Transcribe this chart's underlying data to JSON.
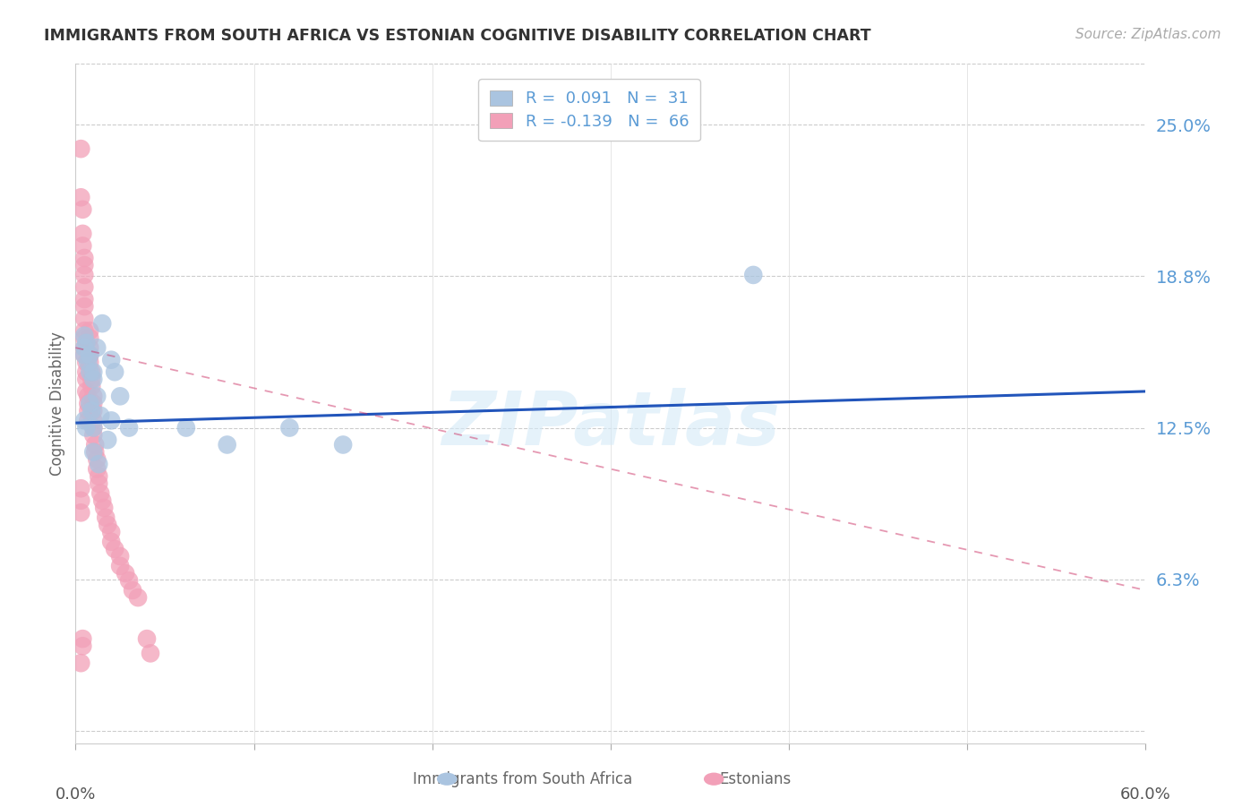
{
  "title": "IMMIGRANTS FROM SOUTH AFRICA VS ESTONIAN COGNITIVE DISABILITY CORRELATION CHART",
  "source": "Source: ZipAtlas.com",
  "ylabel": "Cognitive Disability",
  "yticks": [
    0.0,
    0.0625,
    0.125,
    0.1875,
    0.25
  ],
  "ytick_labels": [
    "",
    "6.3%",
    "12.5%",
    "18.8%",
    "25.0%"
  ],
  "xlim": [
    0.0,
    0.6
  ],
  "ylim": [
    -0.005,
    0.275
  ],
  "legend1_label": "R =  0.091   N =  31",
  "legend2_label": "R = -0.139   N =  66",
  "scatter_blue_color": "#aac4e0",
  "scatter_pink_color": "#f2a0b8",
  "trend_blue_color": "#2255bb",
  "trend_pink_color": "#cc3366",
  "watermark": "ZIPatlas",
  "blue_scatter_x": [
    0.005,
    0.007,
    0.008,
    0.005,
    0.006,
    0.005,
    0.008,
    0.009,
    0.005,
    0.006,
    0.01,
    0.012,
    0.014,
    0.01,
    0.015,
    0.012,
    0.008,
    0.01,
    0.01,
    0.013,
    0.02,
    0.022,
    0.02,
    0.018,
    0.025,
    0.03,
    0.062,
    0.085,
    0.12,
    0.15,
    0.38
  ],
  "blue_scatter_y": [
    0.155,
    0.152,
    0.148,
    0.163,
    0.16,
    0.158,
    0.135,
    0.132,
    0.128,
    0.125,
    0.145,
    0.138,
    0.13,
    0.125,
    0.168,
    0.158,
    0.155,
    0.148,
    0.115,
    0.11,
    0.153,
    0.148,
    0.128,
    0.12,
    0.138,
    0.125,
    0.125,
    0.118,
    0.125,
    0.118,
    0.188
  ],
  "pink_scatter_x": [
    0.003,
    0.003,
    0.004,
    0.004,
    0.004,
    0.005,
    0.005,
    0.005,
    0.005,
    0.005,
    0.005,
    0.005,
    0.005,
    0.005,
    0.005,
    0.005,
    0.006,
    0.006,
    0.006,
    0.006,
    0.007,
    0.007,
    0.007,
    0.007,
    0.008,
    0.008,
    0.008,
    0.008,
    0.008,
    0.009,
    0.009,
    0.009,
    0.01,
    0.01,
    0.01,
    0.01,
    0.01,
    0.01,
    0.011,
    0.011,
    0.012,
    0.012,
    0.013,
    0.013,
    0.014,
    0.015,
    0.016,
    0.017,
    0.018,
    0.02,
    0.02,
    0.022,
    0.025,
    0.025,
    0.028,
    0.03,
    0.032,
    0.035,
    0.04,
    0.042,
    0.003,
    0.003,
    0.003,
    0.004,
    0.004,
    0.003
  ],
  "pink_scatter_y": [
    0.24,
    0.22,
    0.215,
    0.205,
    0.2,
    0.195,
    0.192,
    0.188,
    0.183,
    0.178,
    0.175,
    0.17,
    0.165,
    0.162,
    0.158,
    0.155,
    0.152,
    0.148,
    0.145,
    0.14,
    0.138,
    0.135,
    0.132,
    0.128,
    0.165,
    0.162,
    0.158,
    0.155,
    0.152,
    0.148,
    0.145,
    0.142,
    0.138,
    0.135,
    0.132,
    0.128,
    0.125,
    0.122,
    0.118,
    0.115,
    0.112,
    0.108,
    0.105,
    0.102,
    0.098,
    0.095,
    0.092,
    0.088,
    0.085,
    0.082,
    0.078,
    0.075,
    0.072,
    0.068,
    0.065,
    0.062,
    0.058,
    0.055,
    0.038,
    0.032,
    0.1,
    0.095,
    0.09,
    0.038,
    0.035,
    0.028
  ],
  "blue_trend_y_start": 0.127,
  "blue_trend_y_end": 0.14,
  "pink_trend_y_start": 0.158,
  "pink_trend_y_end": 0.058,
  "xtick_positions": [
    0.0,
    0.1,
    0.2,
    0.3,
    0.4,
    0.5,
    0.6
  ]
}
